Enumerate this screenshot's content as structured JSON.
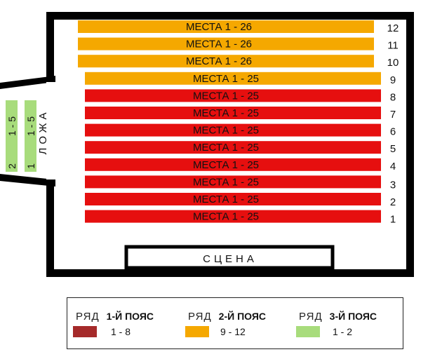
{
  "hall": {
    "rows": [
      {
        "row": "12",
        "seats": "МЕСТА 1 - 26",
        "tier": "2"
      },
      {
        "row": "11",
        "seats": "МЕСТА 1 - 26",
        "tier": "2"
      },
      {
        "row": "10",
        "seats": "МЕСТА 1 - 26",
        "tier": "2"
      },
      {
        "row": "9",
        "seats": "МЕСТА 1 - 25",
        "tier": "2"
      },
      {
        "row": "8",
        "seats": "МЕСТА 1 - 25",
        "tier": "1"
      },
      {
        "row": "7",
        "seats": "МЕСТА 1 - 25",
        "tier": "1"
      },
      {
        "row": "6",
        "seats": "МЕСТА 1 - 25",
        "tier": "1"
      },
      {
        "row": "5",
        "seats": "МЕСТА 1 - 25",
        "tier": "1"
      },
      {
        "row": "4",
        "seats": "МЕСТА 1 - 25",
        "tier": "1"
      },
      {
        "row": "3",
        "seats": "МЕСТА 1 - 25",
        "tier": "1"
      },
      {
        "row": "2",
        "seats": "МЕСТА 1 - 25",
        "tier": "1"
      },
      {
        "row": "1",
        "seats": "МЕСТА 1 - 25",
        "tier": "1"
      }
    ],
    "stage_label": "СЦЕНА",
    "box": {
      "label": "ЛОЖА",
      "rows": [
        {
          "row": "2",
          "seats": "1 - 5"
        },
        {
          "row": "1",
          "seats": "1 - 5"
        }
      ]
    }
  },
  "legend": {
    "row_word": "РЯД",
    "tiers": [
      {
        "name": "1-Й ПОЯС",
        "range": "1 - 8",
        "color": "#a52a2a"
      },
      {
        "name": "2-Й ПОЯС",
        "range": "9 - 12",
        "color": "#f5a800"
      },
      {
        "name": "3-Й ПОЯС",
        "range": "1 - 2",
        "color": "#a8dc7c"
      }
    ]
  },
  "colors": {
    "tier_1_bar": "#e60f0f",
    "tier_2_bar": "#f5a800",
    "tier_3_bar": "#a8dc7c",
    "outline": "#000000"
  }
}
